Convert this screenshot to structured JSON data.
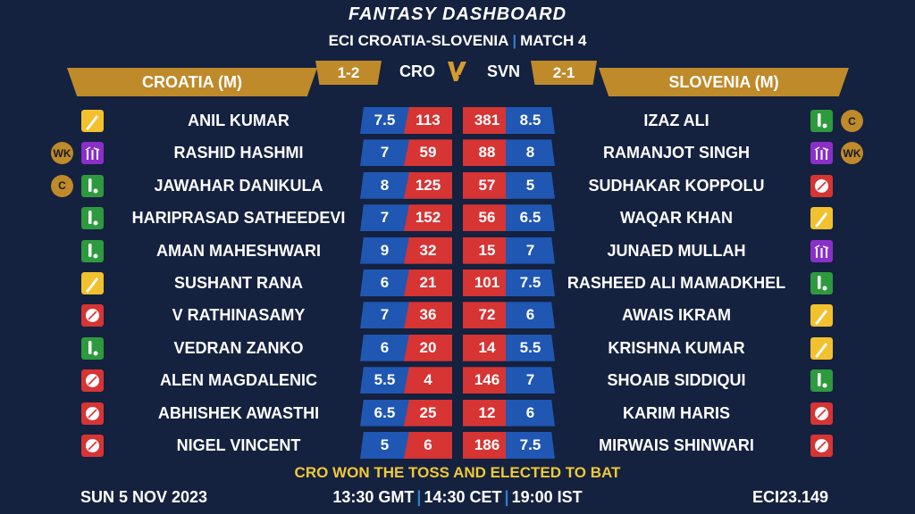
{
  "header": {
    "title": "FANTASY DASHBOARD",
    "subtitle_left": "ECI CROATIA-SLOVENIA",
    "subtitle_right": "MATCH 4"
  },
  "teams": {
    "left": {
      "name": "CROATIA (M)",
      "code": "CRO",
      "record": "1-2"
    },
    "right": {
      "name": "SLOVENIA (M)",
      "code": "SVN",
      "record": "2-1"
    },
    "vs": "VS"
  },
  "colors": {
    "background": "#14213f",
    "gold": "#bf8a2a",
    "credit_blue": "#1f57b3",
    "points_red": "#d73434",
    "toss_yellow": "#f1c933",
    "batter_yellow": "#f2c12e",
    "allrounder_green": "#2e9a3e",
    "keeper_purple": "#8b2fc9",
    "bowler_red": "#d73434"
  },
  "roles_legend": {
    "bat": "batter-icon",
    "ar": "all-rounder-icon",
    "wk": "wicketkeeper-icon",
    "bowl": "bowler-icon"
  },
  "rows": [
    {
      "left": {
        "name": "ANIL KUMAR",
        "role": "bat",
        "badge": "",
        "credit": "7.5",
        "points": "113"
      },
      "right": {
        "name": "IZAZ ALI",
        "role": "ar",
        "badge": "C",
        "credit": "8.5",
        "points": "381"
      }
    },
    {
      "left": {
        "name": "RASHID HASHMI",
        "role": "wk",
        "badge": "WK",
        "credit": "7",
        "points": "59"
      },
      "right": {
        "name": "RAMANJOT SINGH",
        "role": "wk",
        "badge": "WK",
        "credit": "8",
        "points": "88"
      }
    },
    {
      "left": {
        "name": "JAWAHAR DANIKULA",
        "role": "ar",
        "badge": "C",
        "credit": "8",
        "points": "125"
      },
      "right": {
        "name": "SUDHAKAR KOPPOLU",
        "role": "bowl",
        "badge": "",
        "credit": "5",
        "points": "57"
      }
    },
    {
      "left": {
        "name": "HARIPRASAD SATHEEDEVI",
        "role": "ar",
        "badge": "",
        "credit": "7",
        "points": "152"
      },
      "right": {
        "name": "WAQAR KHAN",
        "role": "bat",
        "badge": "",
        "credit": "6.5",
        "points": "56"
      }
    },
    {
      "left": {
        "name": "AMAN MAHESHWARI",
        "role": "ar",
        "badge": "",
        "credit": "9",
        "points": "32"
      },
      "right": {
        "name": "JUNAED MULLAH",
        "role": "wk",
        "badge": "",
        "credit": "7",
        "points": "15"
      }
    },
    {
      "left": {
        "name": "SUSHANT RANA",
        "role": "bat",
        "badge": "",
        "credit": "6",
        "points": "21"
      },
      "right": {
        "name": "RASHEED ALI MAMADKHEL",
        "role": "ar",
        "badge": "",
        "credit": "7.5",
        "points": "101"
      }
    },
    {
      "left": {
        "name": "V RATHINASAMY",
        "role": "bowl",
        "badge": "",
        "credit": "7",
        "points": "36"
      },
      "right": {
        "name": "AWAIS IKRAM",
        "role": "bat",
        "badge": "",
        "credit": "6",
        "points": "72"
      }
    },
    {
      "left": {
        "name": "VEDRAN ZANKO",
        "role": "ar",
        "badge": "",
        "credit": "6",
        "points": "20"
      },
      "right": {
        "name": "KRISHNA KUMAR",
        "role": "bat",
        "badge": "",
        "credit": "5.5",
        "points": "14"
      }
    },
    {
      "left": {
        "name": "ALEN MAGDALENIC",
        "role": "bowl",
        "badge": "",
        "credit": "5.5",
        "points": "4"
      },
      "right": {
        "name": "SHOAIB SIDDIQUI",
        "role": "ar",
        "badge": "",
        "credit": "7",
        "points": "146"
      }
    },
    {
      "left": {
        "name": "ABHISHEK AWASTHI",
        "role": "bowl",
        "badge": "",
        "credit": "6.5",
        "points": "25"
      },
      "right": {
        "name": "KARIM HARIS",
        "role": "bowl",
        "badge": "",
        "credit": "6",
        "points": "12"
      }
    },
    {
      "left": {
        "name": "NIGEL VINCENT",
        "role": "bowl",
        "badge": "",
        "credit": "5",
        "points": "6"
      },
      "right": {
        "name": "MIRWAIS SHINWARI",
        "role": "bowl",
        "badge": "",
        "credit": "7.5",
        "points": "186"
      }
    }
  ],
  "toss": "CRO WON THE TOSS AND ELECTED TO BAT",
  "footer": {
    "date": "SUN 5 NOV 2023",
    "time_gmt": "13:30 GMT",
    "time_cet": "14:30 CET",
    "time_ist": "19:00 IST",
    "match_id": "ECI23.149"
  }
}
